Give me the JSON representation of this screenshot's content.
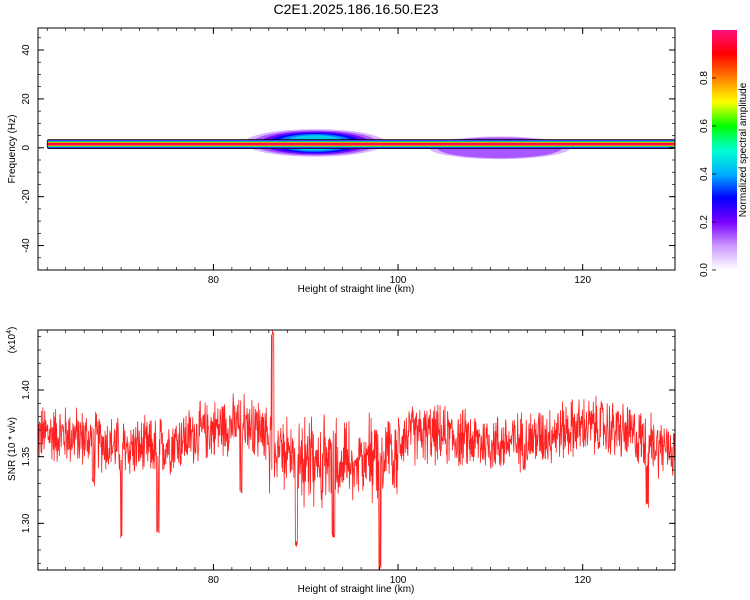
{
  "page": {
    "title": "C2E1.2025.186.16.50.E23"
  },
  "colorbar": {
    "label": "Normalized spectral amplitude",
    "ticks": [
      "0.0",
      "0.2",
      "0.4",
      "0.6",
      "0.8"
    ],
    "tick_values": [
      0.0,
      0.2,
      0.4,
      0.6,
      0.8
    ],
    "range": [
      0,
      1
    ],
    "colors": [
      "#ffffff",
      "#cc99ff",
      "#7a00ff",
      "#0000ff",
      "#00b0ff",
      "#00ffd0",
      "#00ff00",
      "#ffff00",
      "#ff8000",
      "#ff0000",
      "#ff1080"
    ]
  },
  "chart_data": [
    {
      "type": "heatmap",
      "name": "spectrogram",
      "xlabel": "Height of straight line (km)",
      "ylabel": "Frequency (Hz)",
      "xlim": [
        61,
        130
      ],
      "ylim": [
        -50,
        49
      ],
      "x_ticks": [
        "80",
        "100",
        "120"
      ],
      "x_tick_values": [
        80,
        100,
        120
      ],
      "y_ticks": [
        "40",
        "20",
        "0",
        "-20",
        "-40"
      ],
      "y_tick_values": [
        40,
        20,
        0,
        -20,
        -40
      ],
      "grid": false,
      "band": {
        "frequency_hz": 1.5,
        "x_start": 62,
        "x_end": 130,
        "peak_amplitude": 1.0
      },
      "spread_regions": [
        {
          "x_start": 84,
          "x_end": 98,
          "freq_center": 2,
          "freq_halfwidth": 4,
          "peak_amplitude": 0.45
        },
        {
          "x_start": 104,
          "x_end": 118,
          "freq_center": 0,
          "freq_halfwidth": 3,
          "peak_amplitude": 0.15
        }
      ]
    },
    {
      "type": "line",
      "name": "snr",
      "xlabel": "Height of straight line (km)",
      "ylabel": "SNR (10 * v/v)",
      "y_multiplier": "(x10",
      "y_multiplier_exp": "4",
      "y_multiplier_close": ")",
      "xlim": [
        61,
        130
      ],
      "ylim": [
        1.265,
        1.445
      ],
      "x_ticks": [
        "80",
        "100",
        "120"
      ],
      "x_tick_values": [
        80,
        100,
        120
      ],
      "y_ticks": [
        "1.40",
        "1.35",
        "1.30"
      ],
      "y_tick_values": [
        1.4,
        1.35,
        1.3
      ],
      "grid": false,
      "line_color": "#ff2020",
      "series_mean": 1.364,
      "series_amplitude": 0.02,
      "dips": [
        {
          "x": 67,
          "min": 1.328
        },
        {
          "x": 70,
          "min": 1.287
        },
        {
          "x": 74,
          "min": 1.292
        },
        {
          "x": 83,
          "min": 1.322
        },
        {
          "x": 86.4,
          "max": 1.445
        },
        {
          "x": 89,
          "min": 1.282
        },
        {
          "x": 93,
          "min": 1.287
        },
        {
          "x": 98,
          "min": 1.265
        },
        {
          "x": 127,
          "min": 1.31
        }
      ]
    }
  ]
}
